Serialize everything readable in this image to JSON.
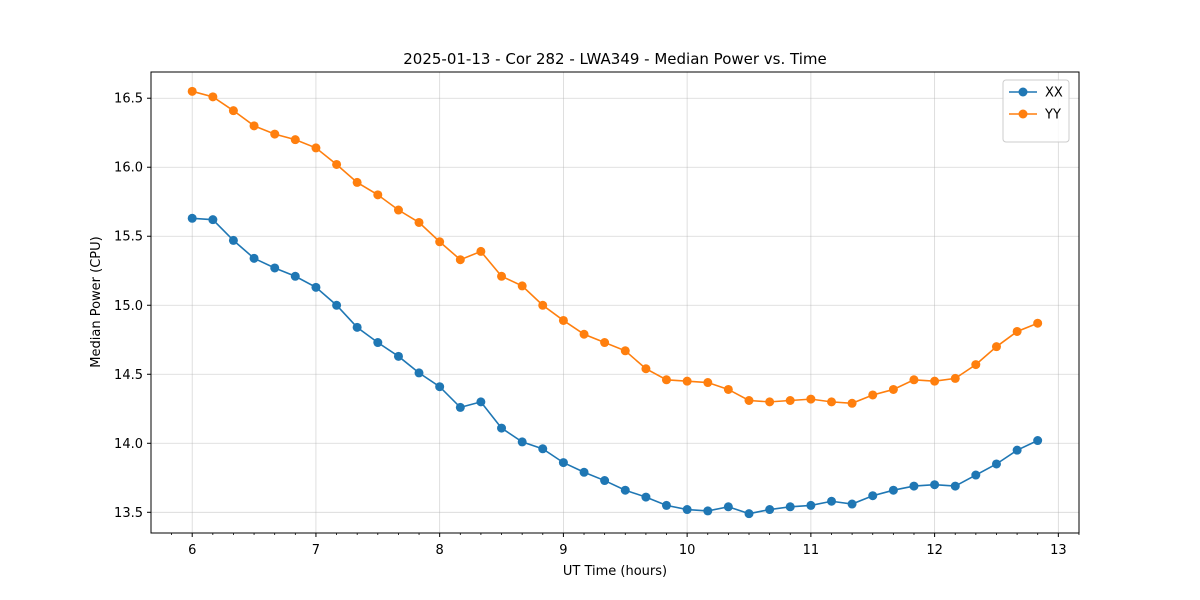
{
  "chart_data": {
    "type": "line",
    "title": "2025-01-13 - Cor 282 - LWA349 - Median Power vs. Time",
    "xlabel": "UT Time (hours)",
    "ylabel": "Median Power (CPU)",
    "xlim": [
      5.667,
      13.167
    ],
    "ylim": [
      13.35,
      16.69
    ],
    "grid": true,
    "legend_position": "upper right",
    "x_ticks": [
      6,
      7,
      8,
      9,
      10,
      11,
      12,
      13
    ],
    "x_tick_labels": [
      "6",
      "7",
      "8",
      "9",
      "10",
      "11",
      "12",
      "13"
    ],
    "y_ticks": [
      13.5,
      14.0,
      14.5,
      15.0,
      15.5,
      16.0,
      16.5
    ],
    "y_tick_labels": [
      "13.5",
      "14.0",
      "14.5",
      "15.0",
      "15.5",
      "16.0",
      "16.5"
    ],
    "x": [
      6.0,
      6.167,
      6.333,
      6.5,
      6.667,
      6.833,
      7.0,
      7.167,
      7.333,
      7.5,
      7.667,
      7.833,
      8.0,
      8.167,
      8.333,
      8.5,
      8.667,
      8.833,
      9.0,
      9.167,
      9.333,
      9.5,
      9.667,
      9.833,
      10.0,
      10.167,
      10.333,
      10.5,
      10.667,
      10.833,
      11.0,
      11.167,
      11.333,
      11.5,
      11.667,
      11.833,
      12.0,
      12.167,
      12.333,
      12.5,
      12.667,
      12.833
    ],
    "series": [
      {
        "name": "XX",
        "color": "#1f77b4",
        "values": [
          15.63,
          15.62,
          15.47,
          15.34,
          15.27,
          15.21,
          15.13,
          15.0,
          14.84,
          14.73,
          14.63,
          14.51,
          14.41,
          14.26,
          14.3,
          14.11,
          14.01,
          13.96,
          13.86,
          13.79,
          13.73,
          13.66,
          13.61,
          13.55,
          13.52,
          13.51,
          13.54,
          13.49,
          13.52,
          13.54,
          13.55,
          13.58,
          13.56,
          13.62,
          13.66,
          13.69,
          13.7,
          13.69,
          13.77,
          13.85,
          13.95,
          14.02
        ]
      },
      {
        "name": "YY",
        "color": "#ff7f0e",
        "values": [
          16.55,
          16.51,
          16.41,
          16.3,
          16.24,
          16.2,
          16.14,
          16.02,
          15.89,
          15.8,
          15.69,
          15.6,
          15.46,
          15.33,
          15.39,
          15.21,
          15.14,
          15.0,
          14.89,
          14.79,
          14.73,
          14.67,
          14.54,
          14.46,
          14.45,
          14.44,
          14.39,
          14.31,
          14.3,
          14.31,
          14.32,
          14.3,
          14.29,
          14.35,
          14.39,
          14.46,
          14.45,
          14.47,
          14.57,
          14.7,
          14.81,
          14.87
        ]
      }
    ]
  }
}
